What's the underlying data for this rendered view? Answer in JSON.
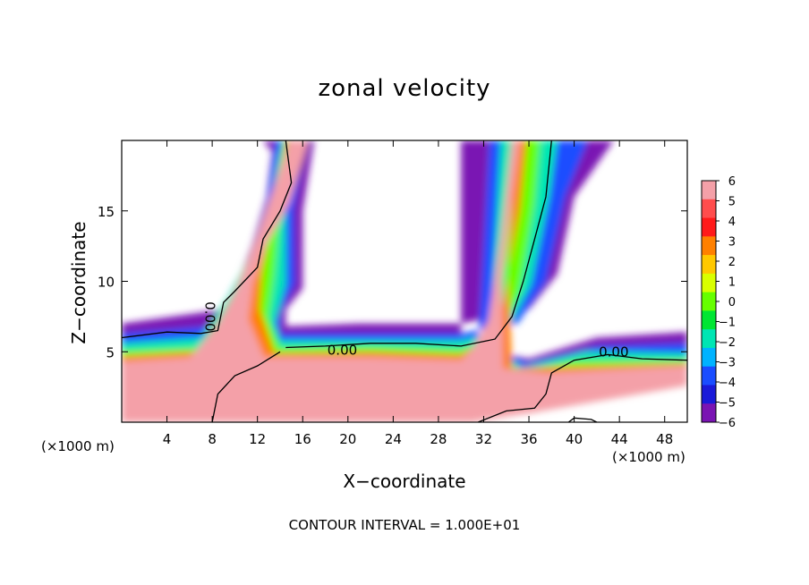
{
  "chart_data": {
    "type": "heatmap",
    "title": "zonal velocity",
    "xlabel": "X−coordinate",
    "ylabel": "Z−coordinate",
    "x_unit_left": "(×1000 m)",
    "x_unit_right": "(×1000 m)",
    "footer": "CONTOUR INTERVAL = 1.000E+01",
    "xlim": [
      0,
      50
    ],
    "ylim": [
      0,
      20
    ],
    "x_ticks": [
      4,
      8,
      12,
      16,
      20,
      24,
      28,
      32,
      36,
      40,
      44,
      48
    ],
    "y_ticks": [
      5,
      10,
      15
    ],
    "colorbar": {
      "ticks": [
        "6",
        "5",
        "4",
        "3",
        "2",
        "1",
        "0",
        "−1",
        "−2",
        "−3",
        "−4",
        "−5",
        "−6"
      ],
      "values": [
        6,
        5,
        4,
        3,
        2,
        1,
        0,
        -1,
        -2,
        -3,
        -4,
        -5,
        -6
      ],
      "colors": [
        "#f4a0a8",
        "#ff4d4d",
        "#ff1a1a",
        "#ff8000",
        "#ffc800",
        "#d9ff00",
        "#66ff00",
        "#00e633",
        "#00e6b3",
        "#00b3ff",
        "#1a4dff",
        "#1a1ad9",
        "#7a14b3"
      ]
    },
    "contour_labels": [
      {
        "text": "0.00",
        "x": 19.5,
        "y": 5.1
      },
      {
        "text": "0.00",
        "x": 43.5,
        "y": 5.0
      },
      {
        "text": "0.00",
        "x": 7.8,
        "y": 7.5
      }
    ],
    "zero_contours": [
      {
        "points": [
          [
            0,
            6.0
          ],
          [
            4,
            6.4
          ],
          [
            7,
            6.3
          ],
          [
            8.5,
            6.5
          ],
          [
            9,
            8.5
          ],
          [
            10,
            9.3
          ],
          [
            12,
            11.0
          ],
          [
            12.5,
            13.0
          ],
          [
            14,
            15.0
          ],
          [
            15,
            17.0
          ],
          [
            14.5,
            20
          ]
        ]
      },
      {
        "points": [
          [
            14.5,
            5.3
          ],
          [
            18,
            5.4
          ],
          [
            22,
            5.6
          ],
          [
            26,
            5.6
          ],
          [
            30,
            5.4
          ],
          [
            33,
            5.9
          ],
          [
            34.5,
            7.5
          ],
          [
            35.5,
            10.0
          ],
          [
            36.5,
            13.0
          ],
          [
            37.5,
            16.0
          ],
          [
            38,
            20
          ]
        ]
      },
      {
        "points": [
          [
            8,
            0
          ],
          [
            8.5,
            2.0
          ],
          [
            10,
            3.3
          ],
          [
            12,
            4.0
          ],
          [
            14,
            5.0
          ]
        ]
      },
      {
        "points": [
          [
            31.5,
            0
          ],
          [
            34,
            0.8
          ],
          [
            36.5,
            1.0
          ],
          [
            37.5,
            2.0
          ],
          [
            38,
            3.5
          ],
          [
            40,
            4.4
          ],
          [
            43,
            4.8
          ],
          [
            46,
            4.5
          ],
          [
            50,
            4.4
          ]
        ]
      },
      {
        "points": [
          [
            39.5,
            0
          ],
          [
            40,
            0.3
          ],
          [
            41.5,
            0.2
          ],
          [
            42,
            0
          ]
        ]
      }
    ],
    "regions": [
      {
        "value": -6,
        "polygon": [
          [
            0,
            7.0
          ],
          [
            9,
            8.0
          ],
          [
            10.5,
            10.5
          ],
          [
            11.5,
            12.5
          ],
          [
            12.8,
            16.0
          ],
          [
            13.3,
            19.2
          ],
          [
            12.5,
            20
          ],
          [
            17,
            20
          ],
          [
            16,
            15
          ],
          [
            16,
            9.5
          ],
          [
            14.5,
            8.0
          ],
          [
            14.5,
            6.8
          ],
          [
            21,
            7.0
          ],
          [
            30,
            7.0
          ],
          [
            36,
            8.0
          ],
          [
            38.5,
            10.5
          ],
          [
            40,
            16.0
          ],
          [
            43.5,
            20
          ],
          [
            30,
            20
          ],
          [
            30,
            5.4
          ],
          [
            36,
            4.5
          ],
          [
            42,
            6.0
          ],
          [
            50,
            6.4
          ],
          [
            50,
            4.7
          ],
          [
            44,
            3.5
          ],
          [
            40,
            3.0
          ],
          [
            36,
            1.8
          ],
          [
            31,
            0
          ],
          [
            0,
            0
          ]
        ]
      },
      {
        "value": -4,
        "polygon": [
          [
            0,
            6.3
          ],
          [
            8,
            6.8
          ],
          [
            9.8,
            9.5
          ],
          [
            11.5,
            12.0
          ],
          [
            12.8,
            15.5
          ],
          [
            13.6,
            20
          ],
          [
            16.2,
            20
          ],
          [
            15.2,
            15
          ],
          [
            15.3,
            9.8
          ],
          [
            14,
            7.8
          ],
          [
            14,
            6.3
          ],
          [
            22,
            6.3
          ],
          [
            30,
            6.3
          ],
          [
            35,
            7.0
          ],
          [
            37.5,
            10
          ],
          [
            39.2,
            16
          ],
          [
            41.2,
            20
          ],
          [
            32.5,
            20
          ],
          [
            31.5,
            5.5
          ],
          [
            36,
            4.2
          ],
          [
            42,
            5.4
          ],
          [
            50,
            5.6
          ],
          [
            50,
            4.2
          ],
          [
            43,
            3.3
          ],
          [
            39,
            2.7
          ],
          [
            35.5,
            1.4
          ],
          [
            31,
            0
          ],
          [
            0,
            0
          ]
        ]
      },
      {
        "value": -2,
        "polygon": [
          [
            0,
            5.6
          ],
          [
            7,
            6.0
          ],
          [
            9.5,
            9.0
          ],
          [
            11.3,
            11.8
          ],
          [
            13,
            15
          ],
          [
            14.2,
            20
          ],
          [
            15.2,
            20
          ],
          [
            14.5,
            15
          ],
          [
            14.5,
            9.8
          ],
          [
            13.5,
            7.0
          ],
          [
            14,
            5.8
          ],
          [
            22,
            5.8
          ],
          [
            30,
            5.8
          ],
          [
            34,
            6.4
          ],
          [
            36.2,
            9.8
          ],
          [
            37.8,
            16
          ],
          [
            38.5,
            20
          ],
          [
            33.5,
            20
          ],
          [
            32.5,
            5.3
          ],
          [
            35.5,
            3.9
          ],
          [
            41,
            5.0
          ],
          [
            50,
            4.9
          ],
          [
            50,
            4.0
          ],
          [
            42,
            3.1
          ],
          [
            38.5,
            2.3
          ],
          [
            35,
            1.2
          ],
          [
            31,
            0
          ],
          [
            0,
            0
          ]
        ]
      },
      {
        "value": 0,
        "polygon": [
          [
            0,
            5.1
          ],
          [
            7,
            5.3
          ],
          [
            9,
            7.6
          ],
          [
            11,
            10.7
          ],
          [
            12.8,
            13.5
          ],
          [
            14.3,
            20
          ],
          [
            14.6,
            20
          ],
          [
            14.0,
            15
          ],
          [
            13.5,
            10.4
          ],
          [
            13,
            7.5
          ],
          [
            14,
            5.3
          ],
          [
            22,
            5.4
          ],
          [
            30,
            5.2
          ],
          [
            33.2,
            5.8
          ],
          [
            35.2,
            9.3
          ],
          [
            36.5,
            15.5
          ],
          [
            37,
            20
          ],
          [
            34.5,
            20
          ],
          [
            33.5,
            5.0
          ],
          [
            35,
            3.6
          ],
          [
            40,
            4.4
          ],
          [
            50,
            4.4
          ],
          [
            50,
            3.8
          ],
          [
            41,
            2.9
          ],
          [
            38,
            2.0
          ],
          [
            34.5,
            0.9
          ],
          [
            31,
            0
          ],
          [
            0,
            0
          ]
        ]
      },
      {
        "value": 3,
        "polygon": [
          [
            0,
            4.7
          ],
          [
            6.5,
            5.0
          ],
          [
            8.5,
            7.0
          ],
          [
            10.5,
            9.8
          ],
          [
            12.8,
            13.0
          ],
          [
            14.6,
            20
          ],
          [
            15.0,
            20
          ],
          [
            13.3,
            14.5
          ],
          [
            12.4,
            10.6
          ],
          [
            12.2,
            8.0
          ],
          [
            13.5,
            4.9
          ],
          [
            22,
            5.0
          ],
          [
            30,
            4.8
          ],
          [
            31.5,
            5.5
          ],
          [
            33.7,
            8.3
          ],
          [
            35.2,
            15.0
          ],
          [
            35.8,
            20
          ],
          [
            34.8,
            20
          ],
          [
            34.2,
            10.0
          ],
          [
            34.5,
            3.8
          ],
          [
            38,
            3.9
          ],
          [
            50,
            4.2
          ],
          [
            50,
            3.5
          ],
          [
            40,
            2.3
          ],
          [
            37,
            1.6
          ],
          [
            33.5,
            0.5
          ],
          [
            31,
            0
          ],
          [
            0,
            0
          ]
        ]
      },
      {
        "value": 6,
        "polygon": [
          [
            0,
            4.3
          ],
          [
            6,
            4.6
          ],
          [
            8.2,
            6.6
          ],
          [
            10,
            9.2
          ],
          [
            11.8,
            12.8
          ],
          [
            13.8,
            17.5
          ],
          [
            14.8,
            20
          ],
          [
            16.5,
            20
          ],
          [
            14.8,
            15.5
          ],
          [
            12.6,
            12.3
          ],
          [
            11.6,
            9.8
          ],
          [
            11.2,
            7.3
          ],
          [
            12.6,
            4.6
          ],
          [
            22,
            4.6
          ],
          [
            30,
            4.4
          ],
          [
            31,
            5.2
          ],
          [
            32.4,
            7.2
          ],
          [
            33.5,
            13.0
          ],
          [
            34.5,
            20
          ],
          [
            35.2,
            20
          ],
          [
            33.6,
            10
          ],
          [
            33.7,
            3.8
          ],
          [
            37.5,
            3.5
          ],
          [
            50,
            4.0
          ],
          [
            50,
            2.6
          ],
          [
            40,
            1.2
          ],
          [
            36.5,
            0.7
          ],
          [
            32.5,
            0.2
          ],
          [
            31,
            0
          ],
          [
            0,
            0
          ]
        ]
      }
    ]
  }
}
